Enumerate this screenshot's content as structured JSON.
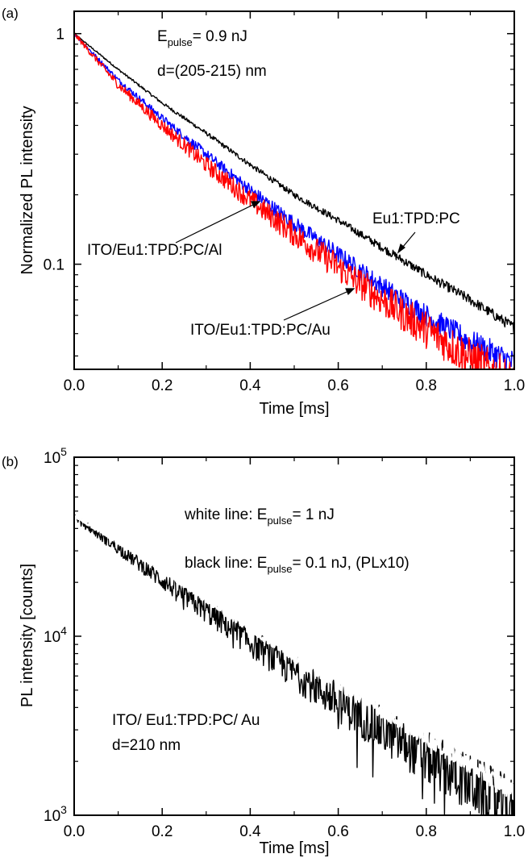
{
  "chart_data": [
    {
      "panel_label": "(a)",
      "type": "line",
      "xlabel": "Time [ms]",
      "ylabel": "Normalized PL intensity",
      "xlim": [
        0.0,
        1.0
      ],
      "ylim": [
        0.035,
        1.25
      ],
      "y_scale": "log",
      "x_ticks": [
        "0.0",
        "0.2",
        "0.4",
        "0.6",
        "0.8",
        "1.0"
      ],
      "y_ticks": [
        "1",
        "0.1"
      ],
      "annotations": {
        "energy_prefix": "E",
        "energy_sub": "pulse",
        "energy_value": "= 0.9 nJ",
        "thickness": "d=(205-215) nm",
        "label_eu": "Eu1:TPD:PC",
        "label_al": "ITO/Eu1:TPD:PC/Al",
        "label_au": "ITO/Eu1:TPD:PC/Au"
      },
      "series": [
        {
          "name": "Eu1:TPD:PC",
          "color": "#000000",
          "x": [
            0.0,
            0.1,
            0.2,
            0.3,
            0.4,
            0.5,
            0.6,
            0.7,
            0.8,
            0.9,
            1.0
          ],
          "y": [
            1.0,
            0.7,
            0.5,
            0.37,
            0.27,
            0.2,
            0.155,
            0.118,
            0.09,
            0.07,
            0.053
          ]
        },
        {
          "name": "ITO/Eu1:TPD:PC/Al",
          "color": "#0000ff",
          "x": [
            0.0,
            0.1,
            0.2,
            0.3,
            0.4,
            0.5,
            0.6,
            0.7,
            0.8,
            0.9,
            1.0
          ],
          "y": [
            1.0,
            0.63,
            0.43,
            0.3,
            0.21,
            0.15,
            0.11,
            0.08,
            0.06,
            0.046,
            0.037
          ]
        },
        {
          "name": "ITO/Eu1:TPD:PC/Au",
          "color": "#ff0000",
          "x": [
            0.0,
            0.1,
            0.2,
            0.3,
            0.4,
            0.5,
            0.6,
            0.7,
            0.8,
            0.9,
            1.0
          ],
          "y": [
            1.0,
            0.6,
            0.4,
            0.27,
            0.19,
            0.135,
            0.097,
            0.07,
            0.052,
            0.039,
            0.03
          ]
        }
      ]
    },
    {
      "panel_label": "(b)",
      "type": "line",
      "xlabel": "Time [ms]",
      "ylabel": "PL intensity [counts]",
      "xlim": [
        0.0,
        1.0
      ],
      "ylim": [
        1000,
        100000
      ],
      "y_scale": "log",
      "x_ticks": [
        "0.0",
        "0.2",
        "0.4",
        "0.6",
        "0.8",
        "1.0"
      ],
      "y_ticks": [
        {
          "base": "10",
          "exp": "5",
          "value": 100000
        },
        {
          "base": "10",
          "exp": "4",
          "value": 10000
        },
        {
          "base": "10",
          "exp": "3",
          "value": 1000
        }
      ],
      "annotations": {
        "white_prefix": "white line:  E",
        "white_sub": "pulse",
        "white_value": "= 1 nJ",
        "black_prefix": "black line:  E",
        "black_sub": "pulse",
        "black_value": "= 0.1 nJ,  (PLx10)",
        "sample": "ITO/ Eu1:TPD:PC/ Au",
        "thickness": "d=210 nm"
      },
      "series": [
        {
          "name": "black line",
          "color": "#000000",
          "x": [
            0.0,
            0.1,
            0.2,
            0.3,
            0.4,
            0.5,
            0.6,
            0.7,
            0.8,
            0.9,
            1.0
          ],
          "y": [
            46000,
            31000,
            20500,
            13800,
            9300,
            6300,
            4300,
            3000,
            2100,
            1500,
            1050
          ]
        },
        {
          "name": "white line",
          "color": "#ffffff",
          "x": [
            0.0,
            0.1,
            0.2,
            0.3,
            0.4,
            0.5,
            0.6,
            0.7,
            0.8,
            0.9,
            1.0
          ],
          "y": [
            47000,
            33500,
            23500,
            16000,
            11000,
            7700,
            5400,
            3800,
            2700,
            1900,
            1350
          ]
        }
      ]
    }
  ]
}
